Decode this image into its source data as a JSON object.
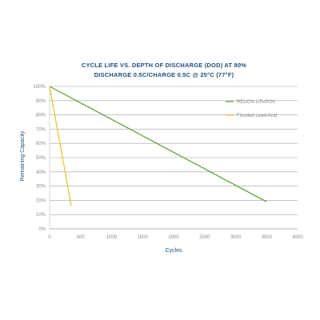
{
  "chart_data": {
    "type": "line",
    "title": "CYCLE LIFE VS. DEPTH OF DISCHARGE (DOD) AT 80%",
    "subtitle": "DISCHARGE 0.5C/CHARGE 0.5C @ 25°C (77°F)",
    "xlabel": "Cycles",
    "ylabel": "Remaining Capacity",
    "xlim": [
      0,
      4000
    ],
    "ylim": [
      0,
      100
    ],
    "x_ticks": [
      0,
      500,
      1000,
      1500,
      2000,
      2500,
      3000,
      3500,
      4000
    ],
    "x_tick_labels": [
      "0",
      "500",
      "1000",
      "1500",
      "2000",
      "2500",
      "3000",
      "3500",
      "4000"
    ],
    "y_ticks": [
      0,
      10,
      20,
      30,
      40,
      50,
      60,
      70,
      80,
      90,
      100
    ],
    "y_tick_labels": [
      "0%",
      "10%",
      "20%",
      "30%",
      "40%",
      "50%",
      "60%",
      "70%",
      "80%",
      "90%",
      "100%"
    ],
    "grid": "horizontal",
    "legend_position": "top-right",
    "series": [
      {
        "name": "RELiON LiFePO4",
        "color": "#5a9e2f",
        "x": [
          0,
          3500
        ],
        "y": [
          100,
          19
        ]
      },
      {
        "name": "Flooded Lead-Acid",
        "color": "#e8c22a",
        "x": [
          0,
          350
        ],
        "y": [
          100,
          16
        ]
      }
    ]
  }
}
